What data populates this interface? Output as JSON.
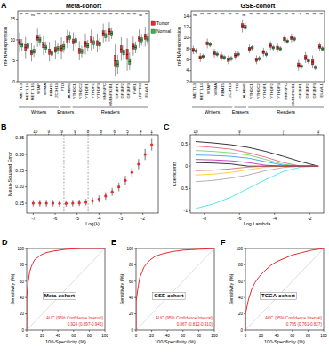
{
  "chart_data": [
    {
      "type": "box",
      "panel_label": "A",
      "title": "Meta-cohort",
      "ylabel": "mRNA expression",
      "categories": [
        "METTL3",
        "METTL14",
        "METTL16",
        "WTAP",
        "VIRMA",
        "RBM15",
        "ZC3H13",
        "FTO",
        "ALKBH5",
        "YTHDC1",
        "YTHDC2",
        "YTHDF1",
        "YTHDF2",
        "YTHDF3",
        "HNRNPC",
        "HNRNPA2B1",
        "IGF2BP1",
        "IGF2BP2",
        "IGF2BP3",
        "FMR1",
        "LRPPRC",
        "ELAVL1"
      ],
      "groups": [
        {
          "label": "Writers",
          "categories": [
            "METTL3",
            "ZC3H13"
          ]
        },
        {
          "label": "Erasers",
          "categories": [
            "FTO",
            "ALKBH5"
          ]
        },
        {
          "label": "Readers",
          "categories": [
            "YTHDC1",
            "ELAVL1"
          ]
        }
      ],
      "significance": [
        "***",
        "***",
        "ns",
        "***",
        "***",
        "***",
        "***",
        "***",
        "***",
        "***",
        "***",
        "***",
        "***",
        "***",
        "***",
        "***",
        "***",
        "***",
        "***",
        "***",
        "ns",
        "***"
      ],
      "ylim": [
        0,
        17
      ],
      "yticks": [
        0,
        5,
        10,
        15
      ],
      "legend": "right",
      "series": [
        {
          "name": "Tumor",
          "color": "#e8282b",
          "min": [
            7.0,
            5.6,
            4.8,
            8.3,
            6.4,
            4.9,
            5.4,
            5.5,
            8.0,
            7.4,
            5.1,
            6.5,
            7.5,
            7.0,
            9.4,
            9.6,
            1.2,
            5.0,
            2.6,
            6.2,
            8.1,
            8.4
          ],
          "q1": [
            8.8,
            7.5,
            6.4,
            9.9,
            8.1,
            6.5,
            7.0,
            7.2,
            9.5,
            9.0,
            6.7,
            8.3,
            9.3,
            8.6,
            11.0,
            11.3,
            3.8,
            6.9,
            5.3,
            7.8,
            9.7,
            10.1
          ],
          "median": [
            9.5,
            8.2,
            7.0,
            10.5,
            8.8,
            7.2,
            7.6,
            8.0,
            10.2,
            9.6,
            7.4,
            9.0,
            10.0,
            9.2,
            11.6,
            12.0,
            5.0,
            7.8,
            6.5,
            8.4,
            10.3,
            10.8
          ],
          "q3": [
            10.1,
            8.9,
            7.6,
            11.1,
            9.4,
            7.8,
            8.2,
            8.7,
            10.8,
            10.2,
            8.0,
            9.7,
            10.7,
            9.8,
            12.2,
            12.6,
            6.3,
            8.6,
            7.8,
            9.0,
            10.9,
            11.4
          ],
          "max": [
            11.8,
            10.7,
            9.3,
            12.7,
            11.1,
            9.5,
            9.9,
            10.6,
            12.4,
            11.8,
            9.7,
            11.5,
            12.5,
            11.5,
            13.9,
            14.2,
            8.9,
            10.6,
            10.4,
            10.8,
            12.5,
            13.2
          ]
        },
        {
          "name": "Normal",
          "color": "#3cb043",
          "min": [
            7.4,
            7.0,
            5.9,
            8.6,
            6.8,
            5.4,
            6.6,
            6.9,
            9.2,
            8.4,
            5.8,
            7.2,
            7.9,
            7.6,
            9.6,
            10.2,
            1.9,
            5.3,
            2.8,
            6.8,
            8.6,
            8.8
          ],
          "q1": [
            8.3,
            8.0,
            6.8,
            9.5,
            7.7,
            6.3,
            7.4,
            7.8,
            10.1,
            9.3,
            6.7,
            8.1,
            8.8,
            8.5,
            10.5,
            11.1,
            3.4,
            6.4,
            4.1,
            7.7,
            9.5,
            9.7
          ],
          "median": [
            8.8,
            8.5,
            7.2,
            10.0,
            8.2,
            6.8,
            7.9,
            8.4,
            10.6,
            9.8,
            7.2,
            8.6,
            9.3,
            9.0,
            11.0,
            11.6,
            4.2,
            7.0,
            4.8,
            8.2,
            10.0,
            10.2
          ],
          "q3": [
            9.3,
            9.0,
            7.7,
            10.5,
            8.7,
            7.3,
            8.4,
            8.9,
            11.1,
            10.3,
            7.7,
            9.1,
            9.8,
            9.5,
            11.5,
            12.1,
            5.0,
            7.6,
            5.5,
            8.7,
            10.5,
            10.7
          ],
          "max": [
            10.2,
            9.9,
            8.6,
            11.4,
            9.6,
            8.2,
            9.2,
            9.8,
            12.0,
            11.2,
            8.6,
            10.0,
            10.7,
            10.4,
            12.4,
            13.0,
            6.4,
            8.7,
            7.0,
            9.6,
            11.4,
            11.6
          ]
        }
      ]
    },
    {
      "type": "box",
      "title": "GSE-cohort",
      "ylabel": "mRNA expression",
      "categories": [
        "METTL3",
        "METTL14",
        "WTAP",
        "VIRMA",
        "RBM15",
        "ZC3H13",
        "FTO",
        "ALKBH5",
        "YTHDC1",
        "YTHDC2",
        "YTHDF1",
        "YTHDF2",
        "YTHDF3",
        "HNRNPC",
        "HNRNPA2B1",
        "IGF2BP1",
        "IGF2BP2",
        "IGF2BP3",
        "ELAVL1"
      ],
      "groups": [
        {
          "label": "Writers",
          "categories": [
            "METTL3",
            "ZC3H13"
          ]
        },
        {
          "label": "Erasers",
          "categories": [
            "FTO",
            "ALKBH5"
          ]
        },
        {
          "label": "Readers",
          "categories": [
            "YTHDC1",
            "ELAVL1"
          ]
        }
      ],
      "significance": [
        "ns",
        "***",
        "***",
        "**",
        "***",
        "***",
        "***",
        "ns",
        "***",
        "***",
        "***",
        "***",
        "***",
        "***",
        "***",
        "*",
        "***",
        "***",
        "***"
      ],
      "ylim": [
        2,
        15
      ],
      "yticks": [
        2,
        4,
        6,
        8,
        10,
        12,
        14
      ],
      "series": [
        {
          "name": "Tumor",
          "color": "#e8282b",
          "min": [
            7.0,
            5.6,
            8.1,
            6.4,
            5.8,
            5.2,
            6.0,
            11.0,
            7.2,
            5.2,
            6.6,
            7.8,
            7.4,
            9.0,
            9.2,
            4.0,
            5.4,
            4.4,
            7.6
          ],
          "q1": [
            7.5,
            6.1,
            8.7,
            6.9,
            6.3,
            5.7,
            6.5,
            11.8,
            7.7,
            5.7,
            7.1,
            8.3,
            7.9,
            9.5,
            9.7,
            4.6,
            6.0,
            5.1,
            8.1
          ],
          "median": [
            7.8,
            6.4,
            9.0,
            7.2,
            6.6,
            6.0,
            6.8,
            12.2,
            8.0,
            6.0,
            7.4,
            8.6,
            8.2,
            9.8,
            10.0,
            5.0,
            6.4,
            5.6,
            8.4
          ],
          "q3": [
            8.1,
            6.7,
            9.3,
            7.5,
            6.9,
            6.3,
            7.1,
            12.6,
            8.3,
            6.3,
            7.7,
            8.9,
            8.5,
            10.1,
            10.3,
            5.4,
            6.8,
            6.1,
            8.7
          ],
          "max": [
            8.6,
            7.2,
            9.9,
            8.0,
            7.4,
            6.8,
            7.6,
            13.4,
            8.8,
            6.8,
            8.2,
            9.4,
            9.0,
            10.6,
            10.8,
            6.0,
            7.4,
            6.8,
            9.2
          ]
        },
        {
          "name": "Normal",
          "color": "#3cb043",
          "min": [
            7.1,
            6.1,
            8.3,
            6.5,
            5.9,
            5.7,
            6.5,
            11.3,
            7.7,
            5.7,
            6.5,
            7.7,
            7.5,
            8.9,
            9.3,
            4.3,
            5.3,
            4.1,
            7.5
          ],
          "q1": [
            7.4,
            6.4,
            8.6,
            6.8,
            6.2,
            6.0,
            6.8,
            11.7,
            8.0,
            6.0,
            6.8,
            8.0,
            7.8,
            9.2,
            9.6,
            4.6,
            5.6,
            4.4,
            7.8
          ],
          "median": [
            7.6,
            6.6,
            8.8,
            7.0,
            6.4,
            6.2,
            7.0,
            12.0,
            8.2,
            6.2,
            7.0,
            8.2,
            8.0,
            9.4,
            9.8,
            4.8,
            5.8,
            4.6,
            8.0
          ],
          "q3": [
            7.8,
            6.8,
            9.0,
            7.2,
            6.6,
            6.4,
            7.2,
            12.3,
            8.4,
            6.4,
            7.2,
            8.4,
            8.2,
            9.6,
            10.0,
            5.0,
            6.0,
            4.8,
            8.2
          ],
          "max": [
            8.1,
            7.1,
            9.3,
            7.5,
            6.9,
            6.7,
            7.5,
            12.7,
            8.7,
            6.7,
            7.5,
            8.7,
            8.5,
            9.9,
            10.3,
            5.3,
            6.3,
            5.1,
            8.5
          ]
        }
      ]
    },
    {
      "type": "errorbar",
      "panel_label": "B",
      "xlabel": "Log(λ)",
      "ylabel": "Mean-Squared Error",
      "x": [
        -7.0,
        -6.7,
        -6.4,
        -6.1,
        -5.8,
        -5.5,
        -5.2,
        -4.9,
        -4.6,
        -4.3,
        -4.0,
        -3.7,
        -3.4,
        -3.1,
        -2.8,
        -2.5,
        -2.2,
        -1.9,
        -1.6
      ],
      "values": [
        0.15,
        0.15,
        0.15,
        0.15,
        0.149,
        0.149,
        0.15,
        0.151,
        0.153,
        0.157,
        0.163,
        0.172,
        0.185,
        0.2,
        0.22,
        0.245,
        0.27,
        0.3,
        0.33
      ],
      "error": [
        0.01,
        0.01,
        0.01,
        0.01,
        0.01,
        0.01,
        0.01,
        0.01,
        0.01,
        0.011,
        0.011,
        0.012,
        0.012,
        0.013,
        0.014,
        0.015,
        0.016,
        0.017,
        0.018
      ],
      "color": "#e8282b",
      "vlines": [
        -5.6,
        -4.5
      ],
      "top_ticks": [
        {
          "value": -6.9,
          "label": "10"
        },
        {
          "value": -6.3,
          "label": "9"
        },
        {
          "value": -5.7,
          "label": "9"
        },
        {
          "value": -5.1,
          "label": "9"
        },
        {
          "value": -4.5,
          "label": "8"
        },
        {
          "value": -3.9,
          "label": "8"
        },
        {
          "value": -3.3,
          "label": "6"
        },
        {
          "value": -2.7,
          "label": "5"
        },
        {
          "value": -2.1,
          "label": "4"
        },
        {
          "value": -1.6,
          "label": "1"
        }
      ],
      "xlim": [
        -7.3,
        -1.3
      ],
      "xticks": [
        -7,
        -6,
        -5,
        -4,
        -3,
        -2
      ],
      "ylim": [
        0.12,
        0.36
      ],
      "yticks": [
        0.15,
        {
          "value": 0.2,
          "label": "0.20"
        },
        0.25,
        {
          "value": 0.3,
          "label": "0.30"
        },
        0.35
      ]
    },
    {
      "type": "line",
      "panel_label": "C",
      "xlabel": "Log Lambda",
      "ylabel": "Coefficients",
      "x": [
        -8.5,
        -7.5,
        -6.5,
        -5.5,
        -4.5,
        -3.5,
        -2.5,
        -1.5
      ],
      "series": [
        {
          "color": "#000000",
          "values": [
            0.55,
            0.52,
            0.48,
            0.42,
            0.33,
            0.22,
            0.1,
            0.0
          ]
        },
        {
          "color": "#df536b",
          "values": [
            0.45,
            0.42,
            0.38,
            0.3,
            0.2,
            0.08,
            0.0,
            0.0
          ]
        },
        {
          "color": "#61d04f",
          "values": [
            0.35,
            0.33,
            0.3,
            0.25,
            0.15,
            0.04,
            0.0,
            0.0
          ]
        },
        {
          "color": "#2297e6",
          "values": [
            0.25,
            0.24,
            0.22,
            0.18,
            0.1,
            0.02,
            0.0,
            0.0
          ]
        },
        {
          "color": "#28e2e5",
          "values": [
            -0.95,
            -0.85,
            -0.7,
            -0.5,
            -0.3,
            -0.12,
            -0.02,
            0.0
          ]
        },
        {
          "color": "#cd0bbc",
          "values": [
            0.15,
            0.14,
            0.12,
            0.08,
            0.02,
            0.0,
            0.0,
            0.0
          ]
        },
        {
          "color": "#f5c710",
          "values": [
            -0.2,
            -0.18,
            -0.14,
            -0.08,
            -0.02,
            0.0,
            0.0,
            0.0
          ]
        },
        {
          "color": "#9e9e9e",
          "values": [
            -0.35,
            -0.32,
            -0.27,
            -0.2,
            -0.1,
            -0.03,
            0.0,
            0.0
          ]
        },
        {
          "color": "#000000",
          "values": [
            0.08,
            0.07,
            0.05,
            0.0,
            0.0,
            0.0,
            0.0,
            0.0
          ]
        },
        {
          "color": "#df536b",
          "values": [
            -0.1,
            -0.09,
            -0.06,
            -0.02,
            0.0,
            0.0,
            0.0,
            0.0
          ]
        }
      ],
      "top_ticks": [
        {
          "value": -8.5,
          "label": "10"
        },
        {
          "value": -6.0,
          "label": "9"
        },
        {
          "value": -3.5,
          "label": "7"
        },
        {
          "value": -1.5,
          "label": "3"
        }
      ],
      "xlim": [
        -8.8,
        -1.2
      ],
      "xticks": [
        -8,
        -6,
        -4,
        -2
      ],
      "ylim": [
        -1.05,
        0.7
      ],
      "yticks": [
        -1,
        -0.5,
        0,
        0.5
      ]
    },
    {
      "type": "roc",
      "panel_label": "D",
      "title": "Meta-cohort",
      "xlabel": "100-Specificity (%)",
      "ylabel": "Sensitivity (%)",
      "annotations": [
        "AUC (95% Confidence Interval)",
        "0.924 (0.897-0.946)"
      ],
      "x": [
        0,
        0,
        2,
        4,
        6,
        8,
        10,
        14,
        18,
        25,
        35,
        50,
        70,
        100
      ],
      "values": [
        0,
        40,
        60,
        72,
        78,
        82,
        86,
        89,
        92,
        95,
        97,
        99,
        100,
        100
      ],
      "color": "#e8282b",
      "xlim": [
        0,
        100
      ],
      "xticks": [
        0,
        20,
        40,
        60,
        80,
        100
      ],
      "ylim": [
        0,
        100
      ],
      "yticks": [
        0,
        20,
        40,
        60,
        80,
        100
      ]
    },
    {
      "type": "roc",
      "panel_label": "E",
      "title": "GSE-cohort",
      "xlabel": "100-Specificity (%)",
      "ylabel": "Sensitivity (%)",
      "annotations": [
        "AUC (95% Confidence Interval)",
        "0.867 (0.812-0.910)"
      ],
      "x": [
        0,
        0,
        3,
        5,
        8,
        10,
        14,
        18,
        24,
        32,
        45,
        60,
        80,
        100
      ],
      "values": [
        0,
        35,
        55,
        65,
        72,
        77,
        82,
        86,
        90,
        93,
        96,
        98,
        99,
        100
      ],
      "color": "#e8282b",
      "xlim": [
        0,
        100
      ],
      "xticks": [
        0,
        20,
        40,
        60,
        80,
        100
      ],
      "ylim": [
        0,
        100
      ],
      "yticks": [
        0,
        20,
        40,
        60,
        80,
        100
      ]
    },
    {
      "type": "roc",
      "panel_label": "F",
      "title": "TCGA-cohort",
      "xlabel": "100-Specificity (%)",
      "ylabel": "Sensitivity (%)",
      "annotations": [
        "AUC (95% Confidence Interval)",
        "0.795 (0.761-0.827)"
      ],
      "x": [
        0,
        0,
        4,
        8,
        12,
        18,
        25,
        32,
        40,
        50,
        60,
        72,
        85,
        100
      ],
      "values": [
        0,
        20,
        38,
        50,
        58,
        66,
        73,
        79,
        84,
        88,
        92,
        95,
        98,
        100
      ],
      "color": "#e8282b",
      "xlim": [
        0,
        100
      ],
      "xticks": [
        0,
        20,
        40,
        60,
        80,
        100
      ],
      "ylim": [
        0,
        100
      ],
      "yticks": [
        0,
        20,
        40,
        60,
        80,
        100
      ]
    }
  ]
}
